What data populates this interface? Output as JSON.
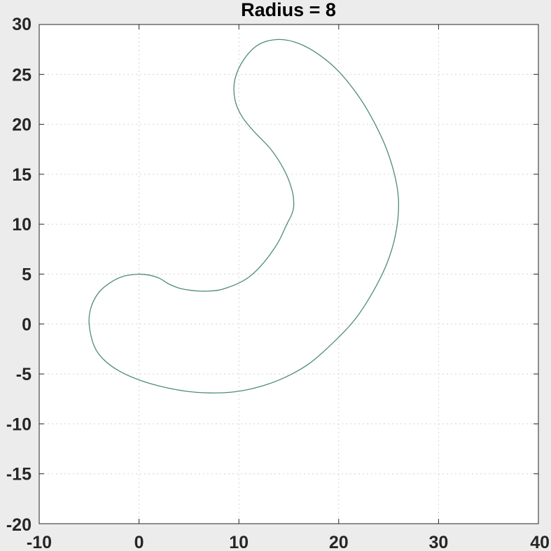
{
  "chart_data": {
    "type": "line",
    "title": "Radius = 8",
    "xlabel": "",
    "ylabel": "",
    "xlim": [
      -10,
      40
    ],
    "ylim": [
      -20,
      30
    ],
    "xticks": [
      -10,
      0,
      10,
      20,
      30,
      40
    ],
    "yticks": [
      -20,
      -15,
      -10,
      -5,
      0,
      5,
      10,
      15,
      20,
      25,
      30
    ],
    "xtick_labels": [
      "-10",
      "0",
      "10",
      "20",
      "30",
      "40"
    ],
    "ytick_labels": [
      "-20",
      "-15",
      "-10",
      "-5",
      "0",
      "5",
      "10",
      "15",
      "20",
      "25",
      "30"
    ],
    "grid": true,
    "colors": {
      "curve": "#4e8c76",
      "axes_background": "#ffffff",
      "figure_background": "#ececec",
      "grid": "#d4d4d4",
      "axes": "#262626"
    },
    "series": [
      {
        "closed": true,
        "x": [
          0,
          1,
          2,
          3,
          4,
          5,
          6,
          7,
          8,
          9,
          10,
          11,
          12,
          13,
          14,
          14.8,
          15.3,
          15.5,
          15.3,
          14.5,
          13.2,
          11.5,
          10.3,
          9.6,
          9.6,
          10.5,
          12,
          14,
          16,
          18,
          20,
          22,
          23.5,
          24.8,
          25.7,
          26,
          25.7,
          24.8,
          23.3,
          21.5,
          19.3,
          17,
          14.5,
          12,
          9.5,
          7,
          4.5,
          2,
          0,
          -2,
          -3.5,
          -4.5,
          -5,
          -4.8,
          -4,
          -2.8,
          -1.5,
          0
        ],
        "y": [
          5,
          4.9,
          4.6,
          4,
          3.6,
          3.4,
          3.3,
          3.3,
          3.4,
          3.7,
          4.1,
          4.7,
          5.6,
          6.8,
          8.3,
          10,
          11,
          12,
          13.5,
          15.5,
          17.5,
          19.3,
          20.8,
          22.5,
          24.5,
          26.5,
          28,
          28.5,
          28.1,
          27,
          25.3,
          22.8,
          20.3,
          17.5,
          14.5,
          12,
          9,
          6,
          3,
          0.3,
          -2,
          -4,
          -5.4,
          -6.3,
          -6.8,
          -6.9,
          -6.7,
          -6.2,
          -5.6,
          -4.7,
          -3.6,
          -2.2,
          0,
          1.7,
          3.2,
          4.2,
          4.8,
          5
        ]
      }
    ]
  }
}
